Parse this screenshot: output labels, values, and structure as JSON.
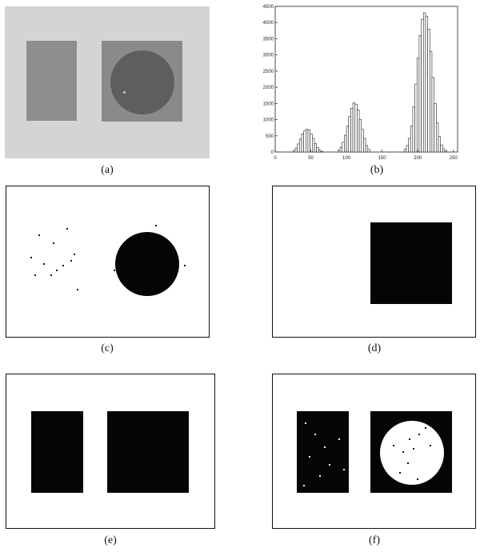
{
  "panels": {
    "a": {
      "label": "(a)"
    },
    "b": {
      "label": "(b)"
    },
    "c": {
      "label": "(c)"
    },
    "d": {
      "label": "(d)"
    },
    "e": {
      "label": "(e)"
    },
    "f": {
      "label": "(f)"
    }
  },
  "chart_data": {
    "type": "bar",
    "title": "",
    "xlabel": "",
    "ylabel": "",
    "xlim": [
      0,
      256
    ],
    "ylim": [
      0,
      4500
    ],
    "x_ticks": [
      0,
      50,
      100,
      150,
      200,
      250
    ],
    "y_ticks": [
      0,
      500,
      1000,
      1500,
      2000,
      2500,
      3000,
      3500,
      4000,
      4500
    ],
    "grid": false,
    "bins_x": [
      25,
      28,
      31,
      34,
      37,
      40,
      43,
      46,
      49,
      52,
      55,
      58,
      61,
      64,
      88,
      91,
      94,
      97,
      100,
      103,
      106,
      109,
      112,
      115,
      118,
      121,
      124,
      127,
      130,
      181,
      184,
      187,
      190,
      193,
      196,
      199,
      202,
      205,
      208,
      211,
      214,
      217,
      220,
      223,
      226,
      229,
      232,
      235,
      238
    ],
    "bins_y": [
      50,
      120,
      250,
      400,
      560,
      650,
      700,
      680,
      560,
      420,
      260,
      140,
      60,
      20,
      60,
      150,
      300,
      520,
      800,
      1100,
      1350,
      1520,
      1480,
      1300,
      1000,
      700,
      420,
      200,
      80,
      80,
      200,
      420,
      800,
      1400,
      2100,
      2900,
      3600,
      4100,
      4300,
      4200,
      3800,
      3100,
      2300,
      1500,
      900,
      480,
      220,
      100,
      40
    ]
  }
}
